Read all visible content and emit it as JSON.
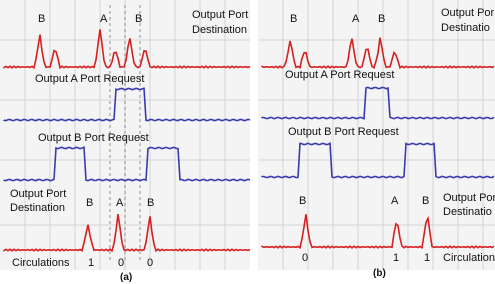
{
  "panels": [
    {
      "caption": "(a)",
      "top_trace": {
        "peaks": [
          "B",
          "A",
          "B"
        ],
        "title": [
          "Output Port",
          "Destination"
        ]
      },
      "request_a": "Output A Port Request",
      "request_b": "Output B Port Request",
      "bottom_trace": {
        "title": [
          "Output Port",
          "Destination"
        ],
        "peaks": [
          "B",
          "A",
          "B"
        ],
        "circulations_label": "Circulations",
        "circulations": [
          "1",
          "0",
          "0"
        ]
      }
    },
    {
      "caption": "(b)",
      "top_trace": {
        "peaks": [
          "B",
          "A",
          "B"
        ],
        "title": [
          "Output Por",
          "Destinatio"
        ]
      },
      "request_a": "Output A Port Request",
      "request_b": "Output B Port Request",
      "bottom_trace": {
        "title": [
          "Output Por",
          "Destinatio"
        ],
        "peaks": [
          "B",
          "A",
          "B"
        ],
        "circulations_label": "Circulation",
        "circulations": [
          "0",
          "1",
          "1"
        ]
      }
    }
  ]
}
